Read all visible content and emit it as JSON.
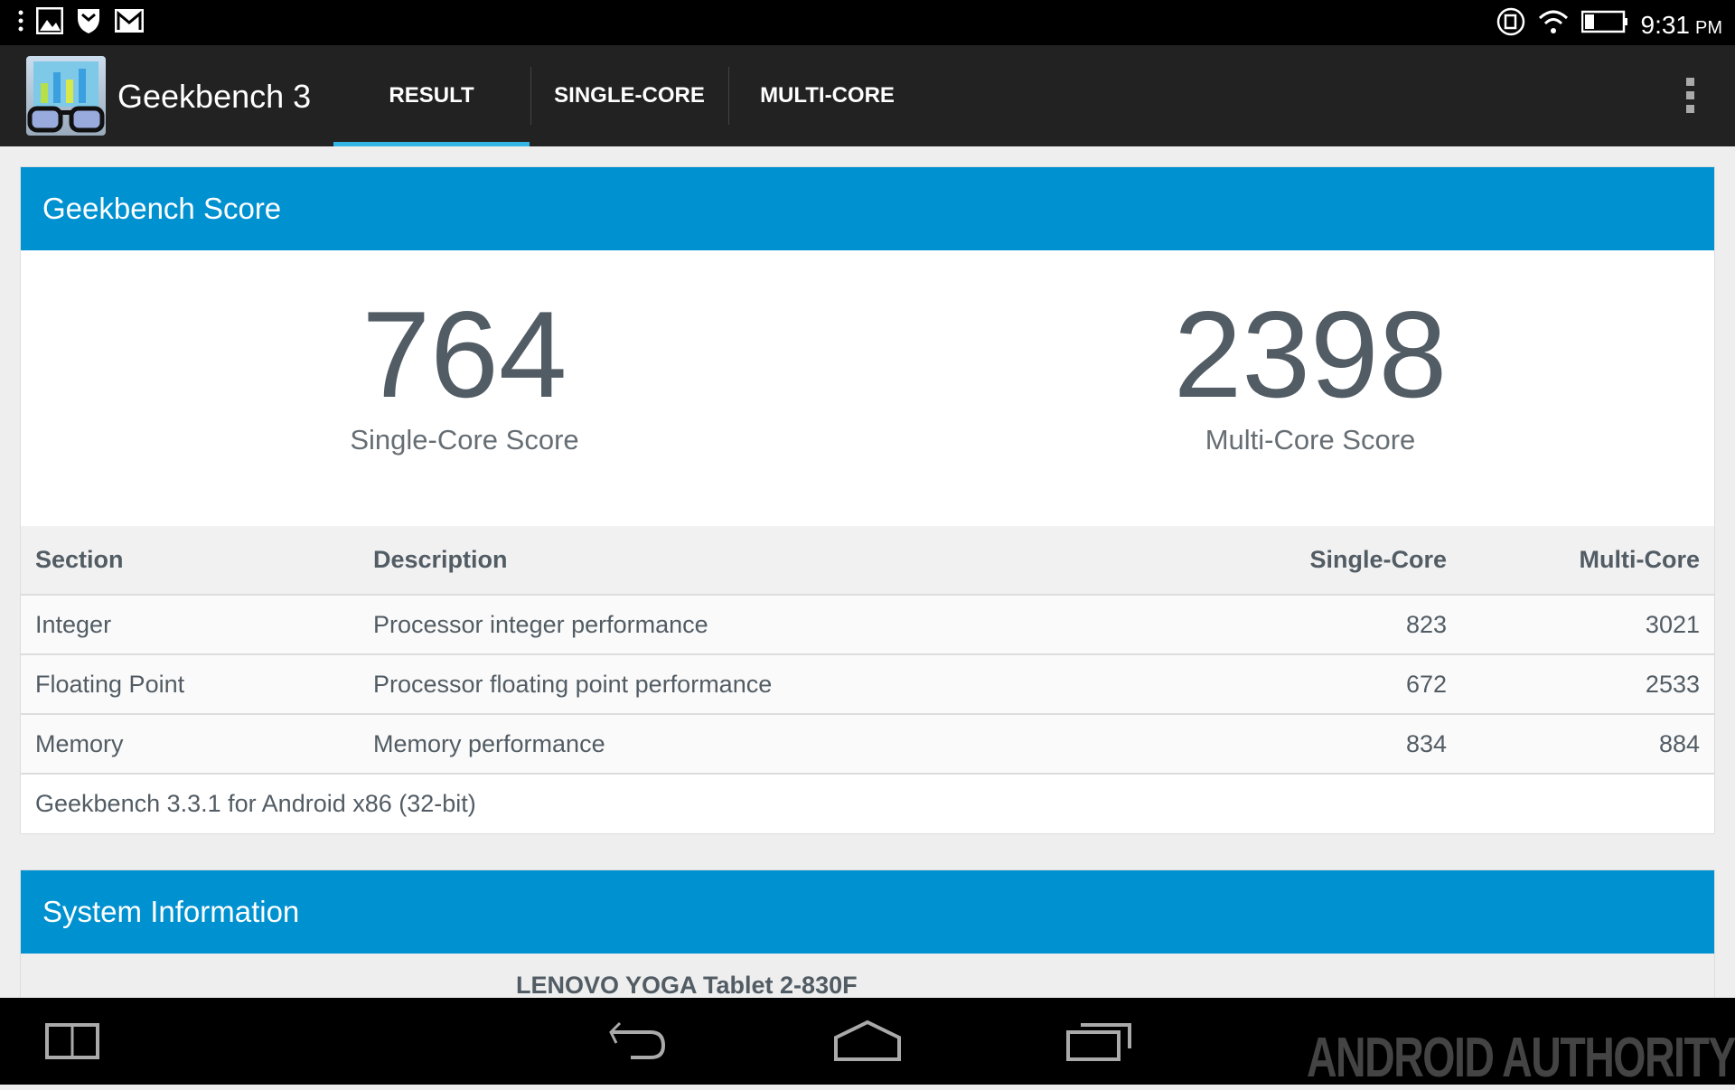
{
  "status_bar": {
    "time": "9:31",
    "ampm": "PM",
    "icons": [
      "menu-dots-icon",
      "gallery-icon",
      "shield-icon",
      "gmail-icon",
      "sync-icon",
      "wifi-icon",
      "battery-icon"
    ]
  },
  "toolbar": {
    "app_name": "Geekbench 3",
    "tabs": [
      {
        "label": "RESULT",
        "active": true
      },
      {
        "label": "SINGLE-CORE"
      },
      {
        "label": "MULTI-CORE"
      }
    ],
    "accent": "#33b5e5"
  },
  "score_card": {
    "title": "Geekbench Score",
    "single": {
      "value": "764",
      "label": "Single-Core Score"
    },
    "multi": {
      "value": "2398",
      "label": "Multi-Core Score"
    },
    "header_color": "#0091d1"
  },
  "table": {
    "headers": [
      "Section",
      "Description",
      "Single-Core",
      "Multi-Core"
    ],
    "rows": [
      [
        "Integer",
        "Processor integer performance",
        "823",
        "3021"
      ],
      [
        "Floating Point",
        "Processor floating point performance",
        "672",
        "2533"
      ],
      [
        "Memory",
        "Memory performance",
        "834",
        "884"
      ]
    ],
    "footer": "Geekbench 3.3.1 for Android x86 (32-bit)"
  },
  "system_card": {
    "title": "System Information",
    "device": "LENOVO YOGA Tablet 2-830F"
  },
  "watermark": "ANDROID AUTHORITY"
}
